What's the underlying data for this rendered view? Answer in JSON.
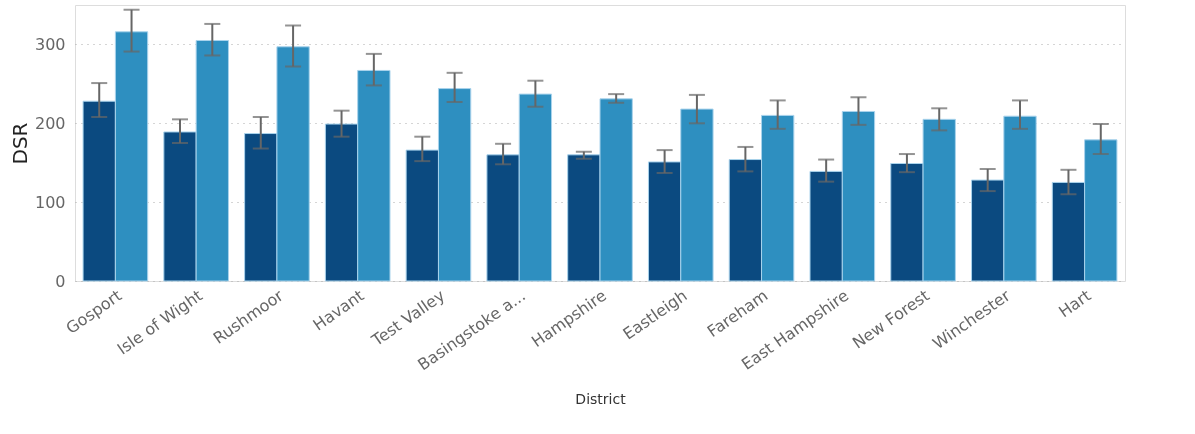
{
  "chart_data": {
    "type": "bar",
    "xlabel": "District",
    "ylabel": "DSR",
    "categories": [
      "Gosport",
      "Isle of Wight",
      "Rushmoor",
      "Havant",
      "Test Valley",
      "Basingstoke a...",
      "Hampshire",
      "Eastleigh",
      "Fareham",
      "East Hampshire",
      "New Forest",
      "Winchester",
      "Hart"
    ],
    "series": [
      {
        "color": "#0b4a80",
        "values": [
          228,
          189,
          187,
          199,
          166,
          160,
          160,
          151,
          154,
          139,
          149,
          128,
          125
        ],
        "errors": [
          [
            208,
            251
          ],
          [
            175,
            205
          ],
          [
            168,
            208
          ],
          [
            183,
            216
          ],
          [
            152,
            183
          ],
          [
            148,
            174
          ],
          [
            155,
            164
          ],
          [
            137,
            166
          ],
          [
            139,
            170
          ],
          [
            126,
            154
          ],
          [
            138,
            161
          ],
          [
            114,
            142
          ],
          [
            110,
            141
          ]
        ]
      },
      {
        "color": "#2e8fc0",
        "values": [
          316,
          305,
          297,
          267,
          244,
          237,
          231,
          218,
          210,
          215,
          205,
          209,
          179
        ],
        "errors": [
          [
            291,
            344
          ],
          [
            286,
            326
          ],
          [
            272,
            324
          ],
          [
            248,
            288
          ],
          [
            227,
            264
          ],
          [
            221,
            254
          ],
          [
            226,
            237
          ],
          [
            200,
            236
          ],
          [
            193,
            229
          ],
          [
            198,
            233
          ],
          [
            191,
            219
          ],
          [
            193,
            229
          ],
          [
            161,
            199
          ]
        ]
      }
    ],
    "ylim": [
      0,
      350
    ],
    "yticks": [
      0,
      100,
      200,
      300
    ],
    "grid": "y",
    "legend": false
  }
}
